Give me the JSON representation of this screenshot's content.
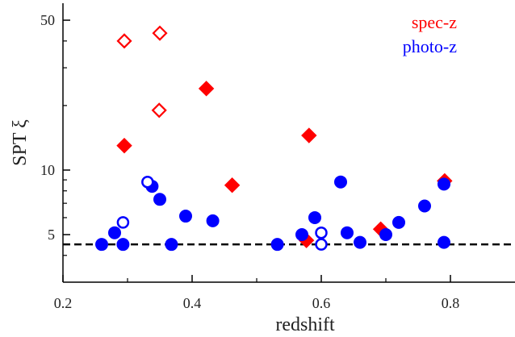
{
  "chart_data": {
    "type": "scatter",
    "xlabel": "redshift",
    "ylabel": "SPT ξ",
    "xlim": [
      0.2,
      0.9
    ],
    "ylim": [
      3,
      60
    ],
    "yscale": "log",
    "grid": false,
    "legend_position": "top-right",
    "x_ticks": [
      {
        "value": 0.2,
        "label": "0.2"
      },
      {
        "value": 0.4,
        "label": "0.4"
      },
      {
        "value": 0.6,
        "label": "0.6"
      },
      {
        "value": 0.8,
        "label": "0.8"
      }
    ],
    "x_minor_ticks": [
      0.3,
      0.5,
      0.7
    ],
    "y_ticks": [
      {
        "value": 5,
        "label": "5"
      },
      {
        "value": 10,
        "label": "10"
      },
      {
        "value": 50,
        "label": "50"
      }
    ],
    "y_minor_ticks": [
      4,
      6,
      7,
      8,
      9,
      20,
      30,
      40
    ],
    "threshold": {
      "y": 4.5,
      "style": "dashed",
      "color": "#000000"
    },
    "series": [
      {
        "name": "spec-z",
        "color": "#ff0000",
        "marker": "diamond",
        "filled": [
          {
            "x": 0.295,
            "y": 13.0
          },
          {
            "x": 0.422,
            "y": 24.0
          },
          {
            "x": 0.462,
            "y": 8.5
          },
          {
            "x": 0.577,
            "y": 4.7
          },
          {
            "x": 0.581,
            "y": 14.5
          },
          {
            "x": 0.692,
            "y": 5.3
          },
          {
            "x": 0.791,
            "y": 8.9
          }
        ],
        "open": [
          {
            "x": 0.295,
            "y": 40.0
          },
          {
            "x": 0.35,
            "y": 43.5
          },
          {
            "x": 0.349,
            "y": 19.0
          }
        ]
      },
      {
        "name": "photo-z",
        "color": "#0000ff",
        "marker": "circle",
        "filled": [
          {
            "x": 0.26,
            "y": 4.5
          },
          {
            "x": 0.28,
            "y": 5.1
          },
          {
            "x": 0.293,
            "y": 4.5
          },
          {
            "x": 0.338,
            "y": 8.4
          },
          {
            "x": 0.35,
            "y": 7.3
          },
          {
            "x": 0.368,
            "y": 4.5
          },
          {
            "x": 0.39,
            "y": 6.1
          },
          {
            "x": 0.432,
            "y": 5.8
          },
          {
            "x": 0.532,
            "y": 4.5
          },
          {
            "x": 0.57,
            "y": 5.0
          },
          {
            "x": 0.59,
            "y": 6.0
          },
          {
            "x": 0.63,
            "y": 8.8
          },
          {
            "x": 0.64,
            "y": 5.1
          },
          {
            "x": 0.66,
            "y": 4.6
          },
          {
            "x": 0.7,
            "y": 5.0
          },
          {
            "x": 0.72,
            "y": 5.7
          },
          {
            "x": 0.76,
            "y": 6.8
          },
          {
            "x": 0.79,
            "y": 8.6
          },
          {
            "x": 0.79,
            "y": 4.6
          }
        ],
        "open": [
          {
            "x": 0.293,
            "y": 5.7
          },
          {
            "x": 0.331,
            "y": 8.8
          },
          {
            "x": 0.6,
            "y": 5.1
          },
          {
            "x": 0.6,
            "y": 4.5
          }
        ]
      }
    ]
  }
}
